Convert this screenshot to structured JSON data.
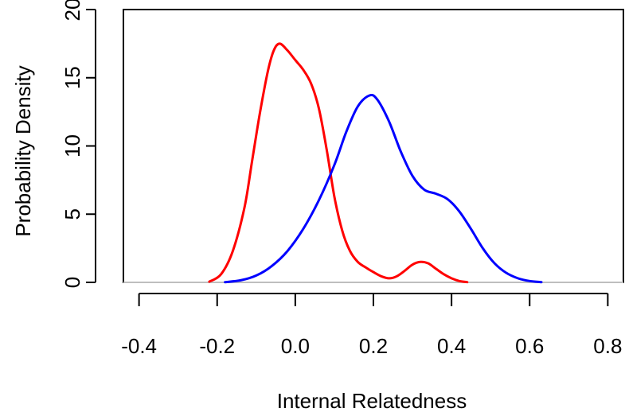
{
  "chart_data": {
    "type": "line",
    "title": "",
    "xlabel": "Internal Relatedness",
    "ylabel": "Probability Density",
    "xlim": [
      -0.44,
      0.84
    ],
    "ylim": [
      0,
      20
    ],
    "x_ticks": [
      -0.4,
      -0.2,
      0.0,
      0.2,
      0.4,
      0.6,
      0.8
    ],
    "x_tick_labels": [
      "-0.4",
      "-0.2",
      "0.0",
      "0.2",
      "0.4",
      "0.6",
      "0.8"
    ],
    "y_ticks": [
      0,
      5,
      10,
      15,
      20
    ],
    "y_tick_labels": [
      "0",
      "5",
      "10",
      "15",
      "20"
    ],
    "grid": false,
    "legend": "none",
    "baseline": {
      "y": 0,
      "color": "#bebebe"
    },
    "series": [
      {
        "color": "#ff0000",
        "points": [
          [
            -0.22,
            0.05
          ],
          [
            -0.19,
            0.6
          ],
          [
            -0.16,
            2.3
          ],
          [
            -0.13,
            5.5
          ],
          [
            -0.11,
            9.0
          ],
          [
            -0.09,
            12.5
          ],
          [
            -0.07,
            15.5
          ],
          [
            -0.055,
            17.0
          ],
          [
            -0.04,
            17.5
          ],
          [
            -0.02,
            17.0
          ],
          [
            0.0,
            16.3
          ],
          [
            0.02,
            15.6
          ],
          [
            0.04,
            14.6
          ],
          [
            0.06,
            12.8
          ],
          [
            0.08,
            9.8
          ],
          [
            0.1,
            6.3
          ],
          [
            0.12,
            3.8
          ],
          [
            0.14,
            2.3
          ],
          [
            0.16,
            1.5
          ],
          [
            0.18,
            1.1
          ],
          [
            0.2,
            0.75
          ],
          [
            0.22,
            0.45
          ],
          [
            0.24,
            0.3
          ],
          [
            0.26,
            0.45
          ],
          [
            0.28,
            0.85
          ],
          [
            0.3,
            1.3
          ],
          [
            0.32,
            1.5
          ],
          [
            0.34,
            1.4
          ],
          [
            0.36,
            1.0
          ],
          [
            0.38,
            0.6
          ],
          [
            0.4,
            0.3
          ],
          [
            0.42,
            0.1
          ],
          [
            0.44,
            0.02
          ]
        ]
      },
      {
        "color": "#0000ff",
        "points": [
          [
            -0.18,
            0.02
          ],
          [
            -0.14,
            0.15
          ],
          [
            -0.1,
            0.5
          ],
          [
            -0.06,
            1.2
          ],
          [
            -0.02,
            2.3
          ],
          [
            0.02,
            3.9
          ],
          [
            0.06,
            6.0
          ],
          [
            0.1,
            8.6
          ],
          [
            0.13,
            11.0
          ],
          [
            0.16,
            12.9
          ],
          [
            0.19,
            13.7
          ],
          [
            0.21,
            13.4
          ],
          [
            0.24,
            11.8
          ],
          [
            0.27,
            9.6
          ],
          [
            0.3,
            7.8
          ],
          [
            0.33,
            6.8
          ],
          [
            0.36,
            6.5
          ],
          [
            0.39,
            6.1
          ],
          [
            0.42,
            5.2
          ],
          [
            0.45,
            3.9
          ],
          [
            0.48,
            2.5
          ],
          [
            0.51,
            1.4
          ],
          [
            0.54,
            0.7
          ],
          [
            0.57,
            0.3
          ],
          [
            0.6,
            0.1
          ],
          [
            0.63,
            0.02
          ]
        ]
      }
    ]
  }
}
